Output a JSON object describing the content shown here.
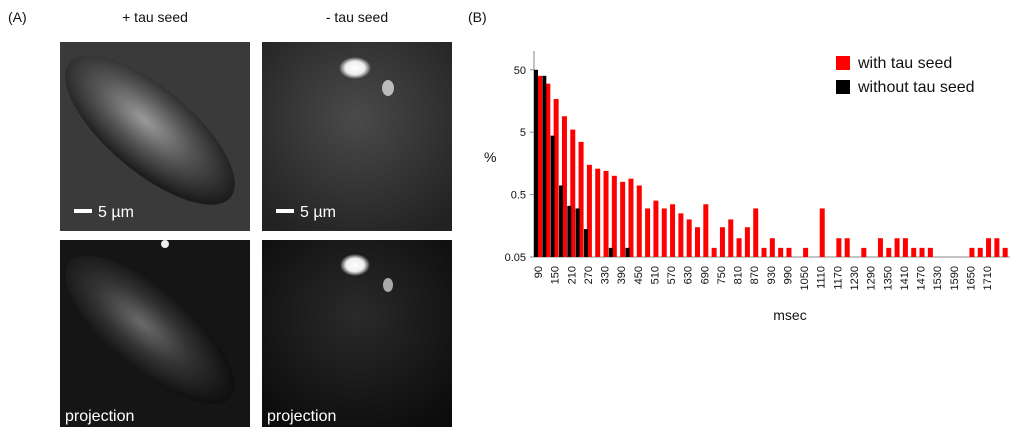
{
  "panel_a": {
    "label": "(A)",
    "col_titles": [
      "+ tau  seed",
      "- tau seed"
    ],
    "scale_labels": [
      "5 µm",
      "5 µm"
    ],
    "bottom_labels": [
      "projection",
      "projection"
    ]
  },
  "chart_data": {
    "type": "bar",
    "panel_label": "(B)",
    "y_label": "%",
    "x_label": "msec",
    "log_y": true,
    "legend": "top-right",
    "categories": [
      "90",
      null,
      "150",
      null,
      "210",
      null,
      "270",
      null,
      "330",
      null,
      "390",
      null,
      "450",
      null,
      "510",
      null,
      "570",
      null,
      "630",
      null,
      "690",
      null,
      "750",
      null,
      "810",
      null,
      "870",
      null,
      "930",
      null,
      "990",
      null,
      "1050",
      null,
      "1110",
      null,
      "1170",
      null,
      "1230",
      null,
      "1290",
      null,
      "1350",
      null,
      "1410",
      null,
      "1470",
      null,
      "1530",
      null,
      "1590",
      null,
      "1650",
      null,
      "1710",
      null,
      null
    ],
    "ylim": [
      0.05,
      100
    ],
    "yticks": [
      0.05,
      0.5,
      5,
      50
    ],
    "series": [
      {
        "name": "with tau seed",
        "color": "#ff0000",
        "values": [
          40,
          30,
          17,
          9,
          5.5,
          3.5,
          1.5,
          1.3,
          1.2,
          1.0,
          0.8,
          0.9,
          0.7,
          0.3,
          0.4,
          0.3,
          0.35,
          0.25,
          0.2,
          0.15,
          0.35,
          0.07,
          0.15,
          0.2,
          0.1,
          0.15,
          0.3,
          0.07,
          0.1,
          0.07,
          0.07,
          null,
          0.07,
          null,
          0.3,
          null,
          0.1,
          0.1,
          null,
          0.07,
          null,
          0.1,
          0.07,
          0.1,
          0.1,
          0.07,
          0.07,
          0.07,
          null,
          null,
          null,
          null,
          0.07,
          0.07,
          0.1,
          0.1,
          0.07
        ]
      },
      {
        "name": "without tau seed",
        "color": "#000000",
        "values": [
          50,
          40,
          4.4,
          0.7,
          0.33,
          0.3,
          0.14,
          null,
          null,
          0.07,
          null,
          0.07,
          null,
          null,
          null,
          null,
          null,
          null,
          null,
          null,
          null,
          null,
          null,
          null,
          null,
          null,
          null,
          null,
          null,
          null,
          null,
          null,
          null,
          null,
          null,
          null,
          null,
          null,
          null,
          null,
          null,
          null,
          null,
          null,
          null,
          null,
          null,
          null,
          null,
          null,
          null,
          null,
          null,
          null,
          null,
          null,
          null
        ]
      }
    ]
  }
}
